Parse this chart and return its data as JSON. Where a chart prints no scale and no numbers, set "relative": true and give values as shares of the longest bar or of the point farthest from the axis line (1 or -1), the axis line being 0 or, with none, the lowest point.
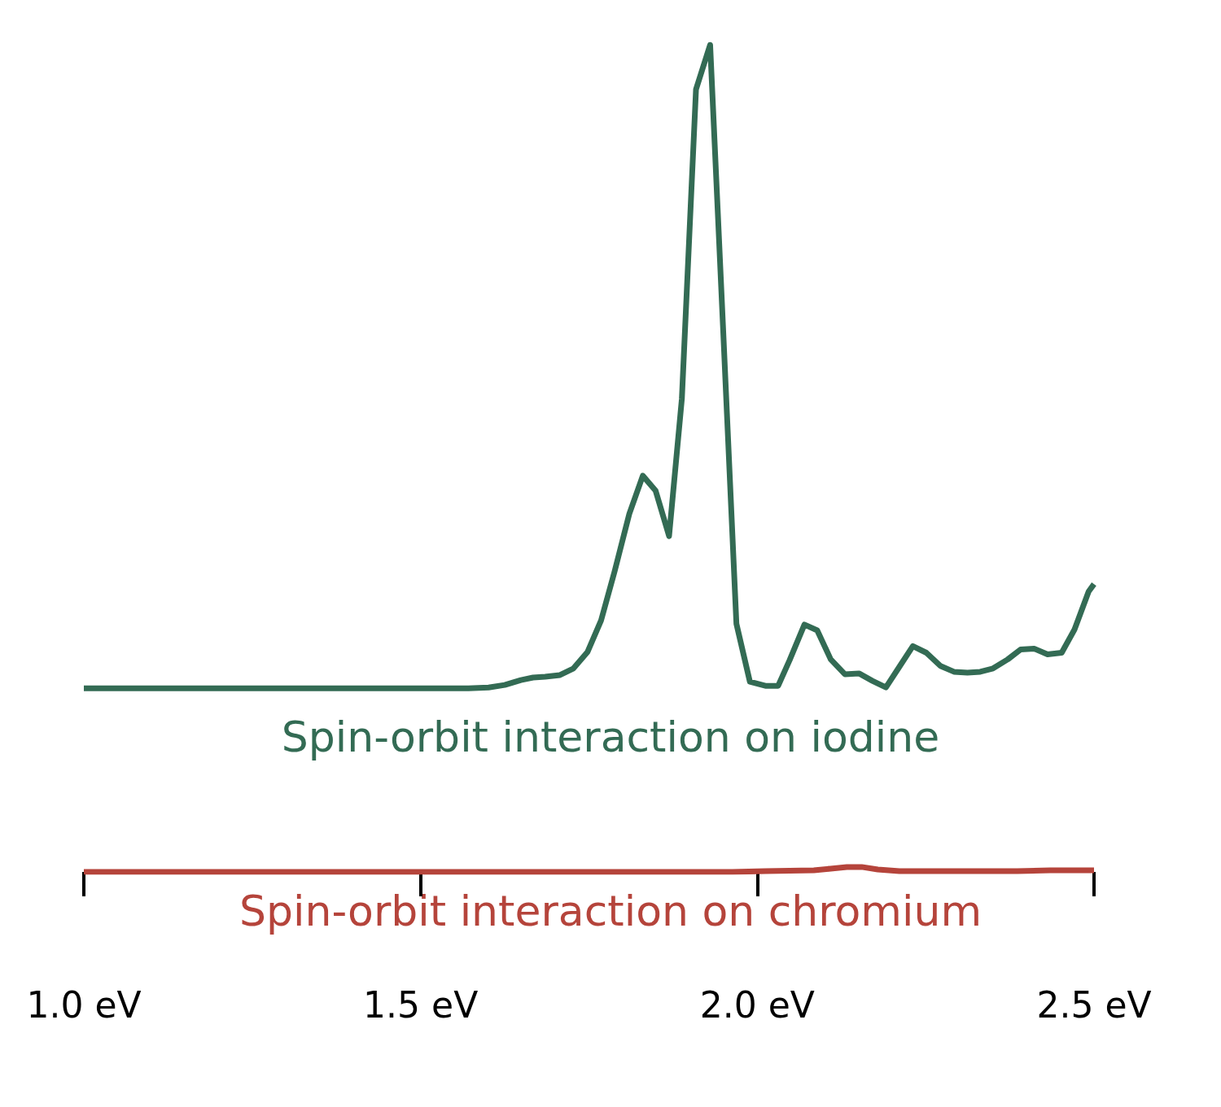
{
  "chart_data": {
    "type": "line",
    "relative": true,
    "xlim": [
      1.0,
      2.5
    ],
    "xticks": [
      {
        "value": 1.0,
        "label": "1.0 eV"
      },
      {
        "value": 1.5,
        "label": "1.5 eV"
      },
      {
        "value": 2.0,
        "label": "2.0 eV"
      },
      {
        "value": 2.5,
        "label": "2.5 eV"
      }
    ],
    "series": [
      {
        "name": "Spin-orbit interaction on iodine",
        "color": "#336b54",
        "x": [
          1.0,
          1.571,
          1.601,
          1.625,
          1.649,
          1.667,
          1.685,
          1.707,
          1.727,
          1.748,
          1.768,
          1.788,
          1.81,
          1.83,
          1.849,
          1.869,
          1.888,
          1.909,
          1.93,
          1.949,
          1.969,
          1.989,
          2.012,
          2.031,
          2.048,
          2.07,
          2.089,
          2.109,
          2.13,
          2.151,
          2.171,
          2.191,
          2.211,
          2.231,
          2.251,
          2.272,
          2.292,
          2.312,
          2.331,
          2.35,
          2.372,
          2.391,
          2.411,
          2.431,
          2.452,
          2.471,
          2.492,
          2.5
        ],
        "values": [
          0.222,
          0.222,
          0.223,
          0.226,
          0.232,
          0.235,
          0.236,
          0.238,
          0.246,
          0.266,
          0.304,
          0.363,
          0.433,
          0.479,
          0.461,
          0.406,
          0.572,
          0.946,
          1.0,
          0.661,
          0.3,
          0.23,
          0.225,
          0.225,
          0.256,
          0.299,
          0.292,
          0.257,
          0.239,
          0.24,
          0.231,
          0.223,
          0.248,
          0.273,
          0.265,
          0.249,
          0.242,
          0.241,
          0.242,
          0.246,
          0.257,
          0.269,
          0.27,
          0.263,
          0.265,
          0.293,
          0.339,
          0.348
        ]
      },
      {
        "name": "Spin-orbit interaction on chromium",
        "color": "#b5443b",
        "x": [
          1.0,
          1.963,
          2.012,
          2.084,
          2.109,
          2.133,
          2.155,
          2.179,
          2.211,
          2.386,
          2.435,
          2.5
        ],
        "values": [
          0,
          0,
          0.001,
          0.002,
          0.004,
          0.006,
          0.006,
          0.003,
          0.001,
          0.001,
          0.002,
          0.002
        ]
      }
    ]
  }
}
